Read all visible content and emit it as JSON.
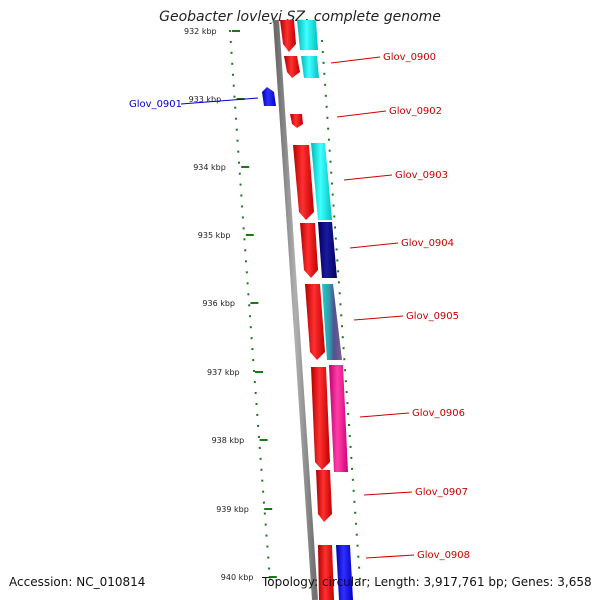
{
  "title": "Geobacter lovleyi SZ, complete genome",
  "accession": "Accession: NC_010814",
  "summary": "Topology: circular; Length: 3,917,761 bp; Genes: 3,658",
  "scale_labels": [
    "932 kbp",
    "933 kbp",
    "934 kbp",
    "935 kbp",
    "936 kbp",
    "937 kbp",
    "938 kbp",
    "939 kbp",
    "940 kbp"
  ],
  "gene_labels": {
    "g0900": "Glov_0900",
    "g0901": "Glov_0901",
    "g0902": "Glov_0902",
    "g0903": "Glov_0903",
    "g0904": "Glov_0904",
    "g0905": "Glov_0905",
    "g0906": "Glov_0906",
    "g0907": "Glov_0907",
    "g0908": "Glov_0908"
  },
  "colors": {
    "cds": "#ff0000",
    "cog_cyan": "#00e5e5",
    "cog_navy": "#000080",
    "cog_magenta": "#ff1493",
    "cog_blue": "#0000ff",
    "backbone": "#8c8c8c",
    "gc_dots": "#1a7a1a",
    "label_red": "#cc0000",
    "label_blue": "#0000cc"
  }
}
